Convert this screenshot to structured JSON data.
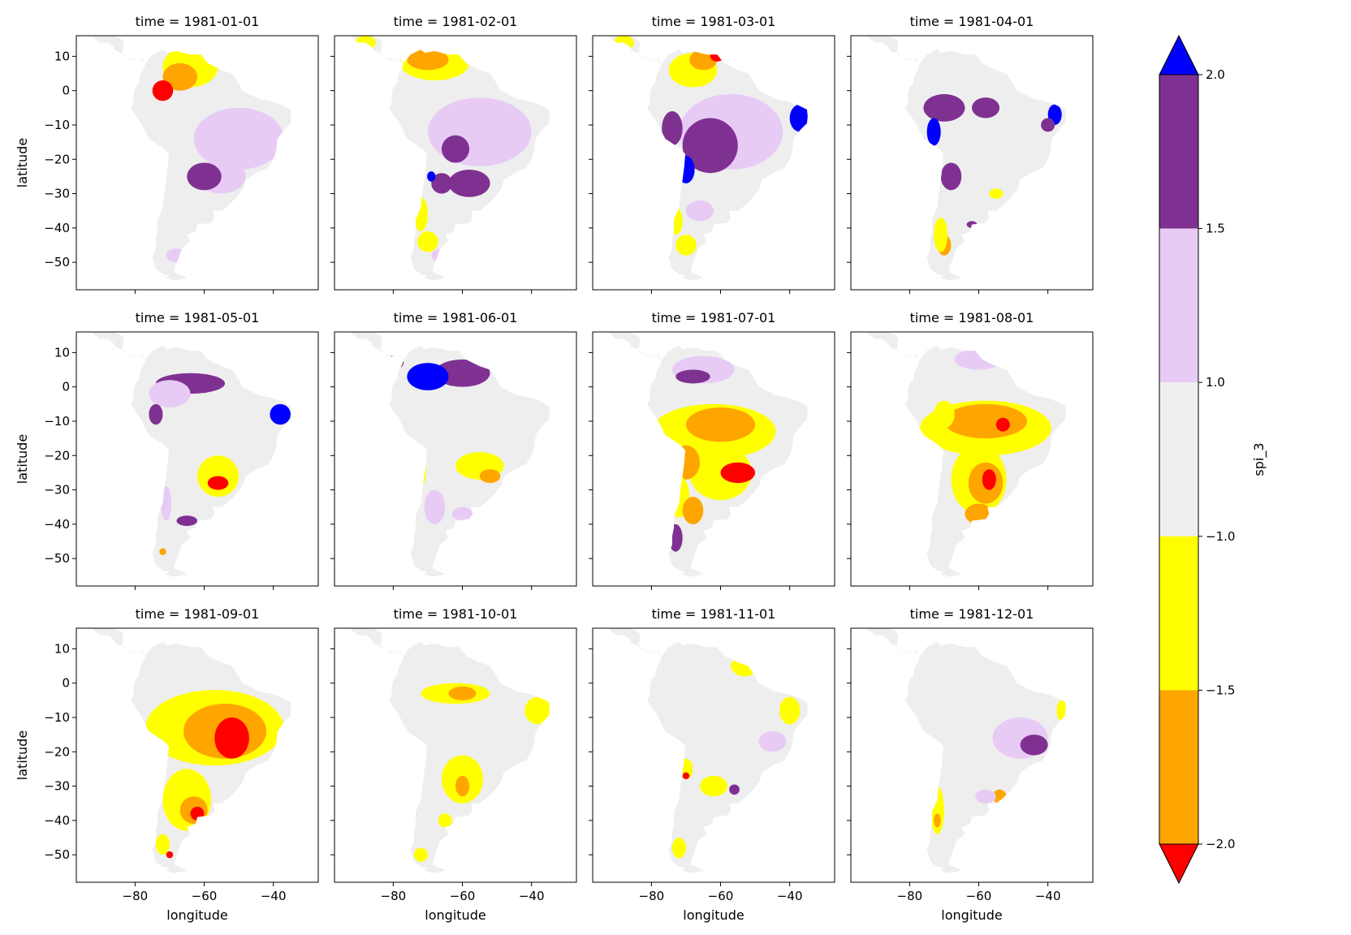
{
  "panels": [
    {
      "title": "time = 1981-01-01"
    },
    {
      "title": "time = 1981-02-01"
    },
    {
      "title": "time = 1981-03-01"
    },
    {
      "title": "time = 1981-04-01"
    },
    {
      "title": "time = 1981-05-01"
    },
    {
      "title": "time = 1981-06-01"
    },
    {
      "title": "time = 1981-07-01"
    },
    {
      "title": "time = 1981-08-01"
    },
    {
      "title": "time = 1981-09-01"
    },
    {
      "title": "time = 1981-10-01"
    },
    {
      "title": "time = 1981-11-01"
    },
    {
      "title": "time = 1981-12-01"
    }
  ],
  "axes": {
    "xlabel": "longitude",
    "ylabel": "latitude",
    "xlim": [
      -97,
      -27
    ],
    "ylim": [
      -58,
      16
    ],
    "xticks": [
      -80,
      -60,
      -40
    ],
    "xtick_labels": [
      "−80",
      "−60",
      "−40"
    ],
    "yticks": [
      10,
      0,
      -10,
      -20,
      -30,
      -40,
      -50
    ],
    "ytick_labels": [
      "10",
      "0",
      "−10",
      "−20",
      "−30",
      "−40",
      "−50"
    ]
  },
  "colorbar": {
    "label": "spi_3",
    "levels": [
      -2.0,
      -1.5,
      -1.0,
      1.0,
      1.5,
      2.0
    ],
    "tick_labels": [
      "−2.0",
      "−1.5",
      "−1.0",
      "1.0",
      "1.5",
      "2.0"
    ],
    "colors": {
      "under": "#ff0000",
      "band_neg2_neg1_5": "#ffa500",
      "band_neg1_5_neg1": "#ffff00",
      "band_neg1_1": "#eeeeee",
      "band_1_1_5": "#e7cbf5",
      "band_1_5_2": "#7f3192",
      "over": "#0000ff"
    },
    "extend": "both"
  }
}
